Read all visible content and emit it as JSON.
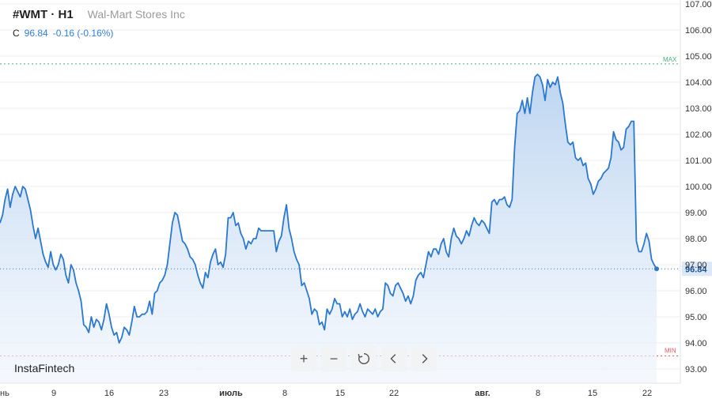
{
  "header": {
    "symbol": "#WMT · H1",
    "company": "Wal-Mart Stores Inc",
    "close_label": "C",
    "close_value": "96.84",
    "change": "-0.16 (-0.16%)"
  },
  "brand": "InstaFintech",
  "colors": {
    "line": "#2b78d0",
    "area_top": "#b9d3f0",
    "area_bottom": "#eef4fc",
    "max_line": "#4caf7d",
    "min_line": "#e05a5a",
    "grid": "#eeeeee",
    "last_price_line": "#2b78d0",
    "last_price_tag": "#dbe8f7"
  },
  "chart_data": {
    "type": "area",
    "ylim": [
      92.5,
      107.3
    ],
    "y_ticks": [
      "107.00",
      "106.00",
      "105.00",
      "104.00",
      "103.00",
      "102.00",
      "101.00",
      "100.00",
      "99.00",
      "98.00",
      "97.00",
      "96.00",
      "95.00",
      "94.00",
      "93.00"
    ],
    "x_ticks": [
      "нь",
      "9",
      "23",
      "июль",
      "8",
      "15",
      "22",
      "авг.",
      "8",
      "15",
      "22"
    ],
    "extra_x_tick": "16",
    "max_label": "MAX",
    "max_value": 104.7,
    "min_label": "MIN",
    "min_value": 93.5,
    "last_value": 96.84,
    "last_value_label": "96.84",
    "series": [
      {
        "values": [
          98.6,
          98.9,
          99.5,
          99.9,
          99.2,
          99.7,
          100.0,
          99.8,
          99.6,
          100.0,
          99.9,
          99.5,
          99.1,
          98.5,
          98.0,
          98.4,
          97.9,
          97.4,
          97.1,
          96.9,
          97.5,
          97.0,
          96.8,
          97.0,
          97.4,
          97.2,
          96.6,
          96.3,
          97.0,
          96.8,
          96.3,
          96.0,
          95.6,
          94.7,
          94.6,
          94.4,
          95.0,
          94.6,
          94.9,
          94.8,
          94.5,
          94.9,
          95.5,
          95.1,
          94.6,
          94.3,
          94.4,
          94.0,
          94.2,
          94.6,
          94.5,
          94.3,
          94.8,
          95.4,
          95.0,
          95.0,
          95.1,
          95.1,
          95.2,
          95.6,
          95.1,
          95.9,
          96.0,
          96.3,
          96.4,
          96.6,
          97.0,
          97.8,
          98.6,
          99.0,
          98.9,
          98.4,
          97.9,
          97.8,
          97.6,
          97.3,
          97.2,
          97.0,
          96.6,
          96.3,
          96.1,
          96.7,
          96.5,
          97.1,
          97.4,
          97.6,
          97.0,
          97.1,
          96.9,
          97.4,
          98.8,
          98.8,
          99.0,
          98.5,
          98.6,
          98.2,
          98.0,
          97.6,
          97.9,
          97.8,
          98.0,
          98.0,
          98.4,
          98.3,
          98.3,
          98.3,
          98.3,
          98.3,
          98.3,
          97.5,
          97.9,
          98.1,
          98.8,
          99.3,
          98.4,
          98.0,
          97.5,
          97.2,
          97.0,
          96.2,
          96.3,
          96.0,
          95.7,
          95.1,
          95.3,
          95.2,
          94.7,
          94.8,
          94.5,
          95.3,
          95.1,
          95.3,
          95.7,
          95.5,
          95.5,
          95.0,
          95.2,
          95.0,
          95.3,
          94.9,
          95.1,
          95.2,
          95.5,
          95.2,
          95.0,
          95.3,
          95.2,
          95.1,
          95.3,
          95.0,
          95.2,
          95.3,
          96.3,
          96.2,
          95.9,
          95.8,
          96.2,
          96.3,
          96.1,
          95.9,
          95.6,
          95.8,
          95.5,
          95.8,
          96.4,
          96.6,
          96.7,
          96.5,
          97.0,
          97.5,
          97.3,
          97.6,
          97.6,
          97.4,
          97.8,
          98.0,
          97.5,
          97.3,
          98.0,
          98.4,
          98.1,
          98.0,
          97.8,
          98.0,
          98.3,
          98.1,
          98.5,
          98.8,
          98.6,
          98.5,
          98.7,
          98.6,
          98.4,
          98.2,
          99.4,
          99.5,
          99.3,
          99.5,
          99.5,
          99.6,
          99.3,
          99.2,
          99.5,
          101.5,
          102.8,
          102.9,
          103.3,
          102.8,
          103.4,
          102.8,
          103.6,
          104.2,
          104.3,
          104.2,
          103.9,
          103.3,
          104.1,
          103.8,
          104.0,
          103.9,
          104.2,
          103.6,
          103.2,
          102.4,
          101.7,
          101.6,
          101.7,
          101.1,
          101.0,
          101.1,
          100.8,
          100.9,
          100.3,
          100.1,
          99.7,
          99.9,
          100.2,
          100.3,
          100.5,
          100.6,
          100.7,
          101.1,
          102.1,
          101.8,
          101.7,
          101.4,
          101.5,
          102.2,
          102.3,
          102.5,
          102.5,
          97.9,
          97.5,
          97.5,
          97.8,
          98.2,
          97.9,
          97.2,
          97.0,
          96.84
        ]
      }
    ]
  },
  "toolbar": {
    "zoom_in": "+",
    "zoom_out": "−",
    "reset_icon": "reset-icon",
    "prev_icon": "chevron-left-icon",
    "next_icon": "chevron-right-icon"
  }
}
